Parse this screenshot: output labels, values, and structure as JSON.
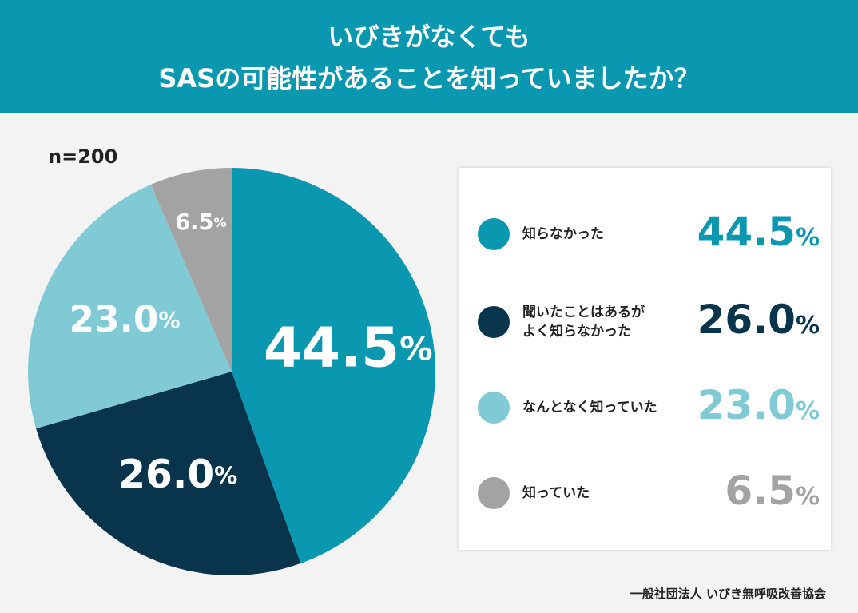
{
  "title_lines": [
    "いびきがなくても",
    "SASの可能性があることを知っていましたか？"
  ],
  "sample_label": "n=200",
  "chart_data": {
    "type": "pie",
    "categories": [
      "知らなかった",
      "聞いたことはあるが\nよく知らなかった",
      "なんとなく知っていた",
      "知っていた"
    ],
    "values": [
      44.5,
      26.0,
      23.0,
      6.5
    ],
    "value_labels": [
      "44.5%",
      "26.0%",
      "23.0%",
      "6.5%"
    ],
    "colors": [
      "#0a97b0",
      "#08354b",
      "#7fcad5",
      "#a3a3a3"
    ]
  },
  "footer": "一般社団法人 いびき無呼吸改善協会"
}
